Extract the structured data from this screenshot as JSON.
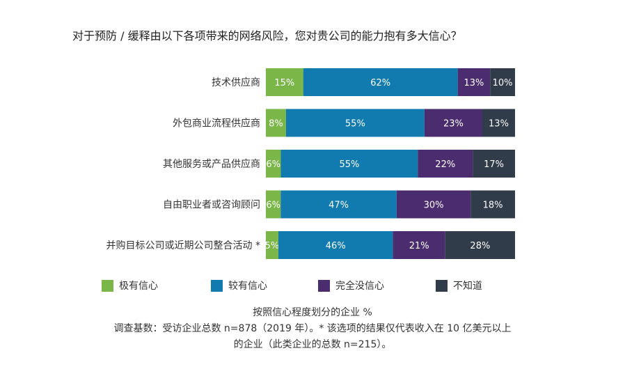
{
  "title": "对于预防 / 缓释由以下各项带来的网络风险，您对贵公司的能力抱有多大信心？",
  "chart_data": {
    "type": "bar",
    "orientation": "horizontal",
    "stacked": true,
    "categories": [
      "技术供应商",
      "外包商业流程供应商",
      "其他服务或产品供应商",
      "自由职业者或咨询顾问",
      "并购目标公司或近期公司整合活动 *"
    ],
    "series": [
      {
        "name": "极有信心",
        "color": "#7ab648",
        "values": [
          15,
          8,
          6,
          6,
          5
        ]
      },
      {
        "name": "较有信心",
        "color": "#117bb0",
        "values": [
          62,
          55,
          55,
          47,
          46
        ]
      },
      {
        "name": "完全没信心",
        "color": "#4b2c6e",
        "values": [
          13,
          23,
          22,
          30,
          21
        ]
      },
      {
        "name": "不知道",
        "color": "#313c4b",
        "values": [
          10,
          13,
          17,
          18,
          28
        ]
      }
    ],
    "value_suffix": "%",
    "legend_position": "bottom",
    "grid": false
  },
  "notes": {
    "line1": "按照信心程度划分的企业 %",
    "line2": "调查基数：受访企业总数 n=878（2019 年）。* 该选项的结果仅代表收入在 10 亿美元以上",
    "line3": "的企业（此类企业的总数 n=215）。"
  }
}
